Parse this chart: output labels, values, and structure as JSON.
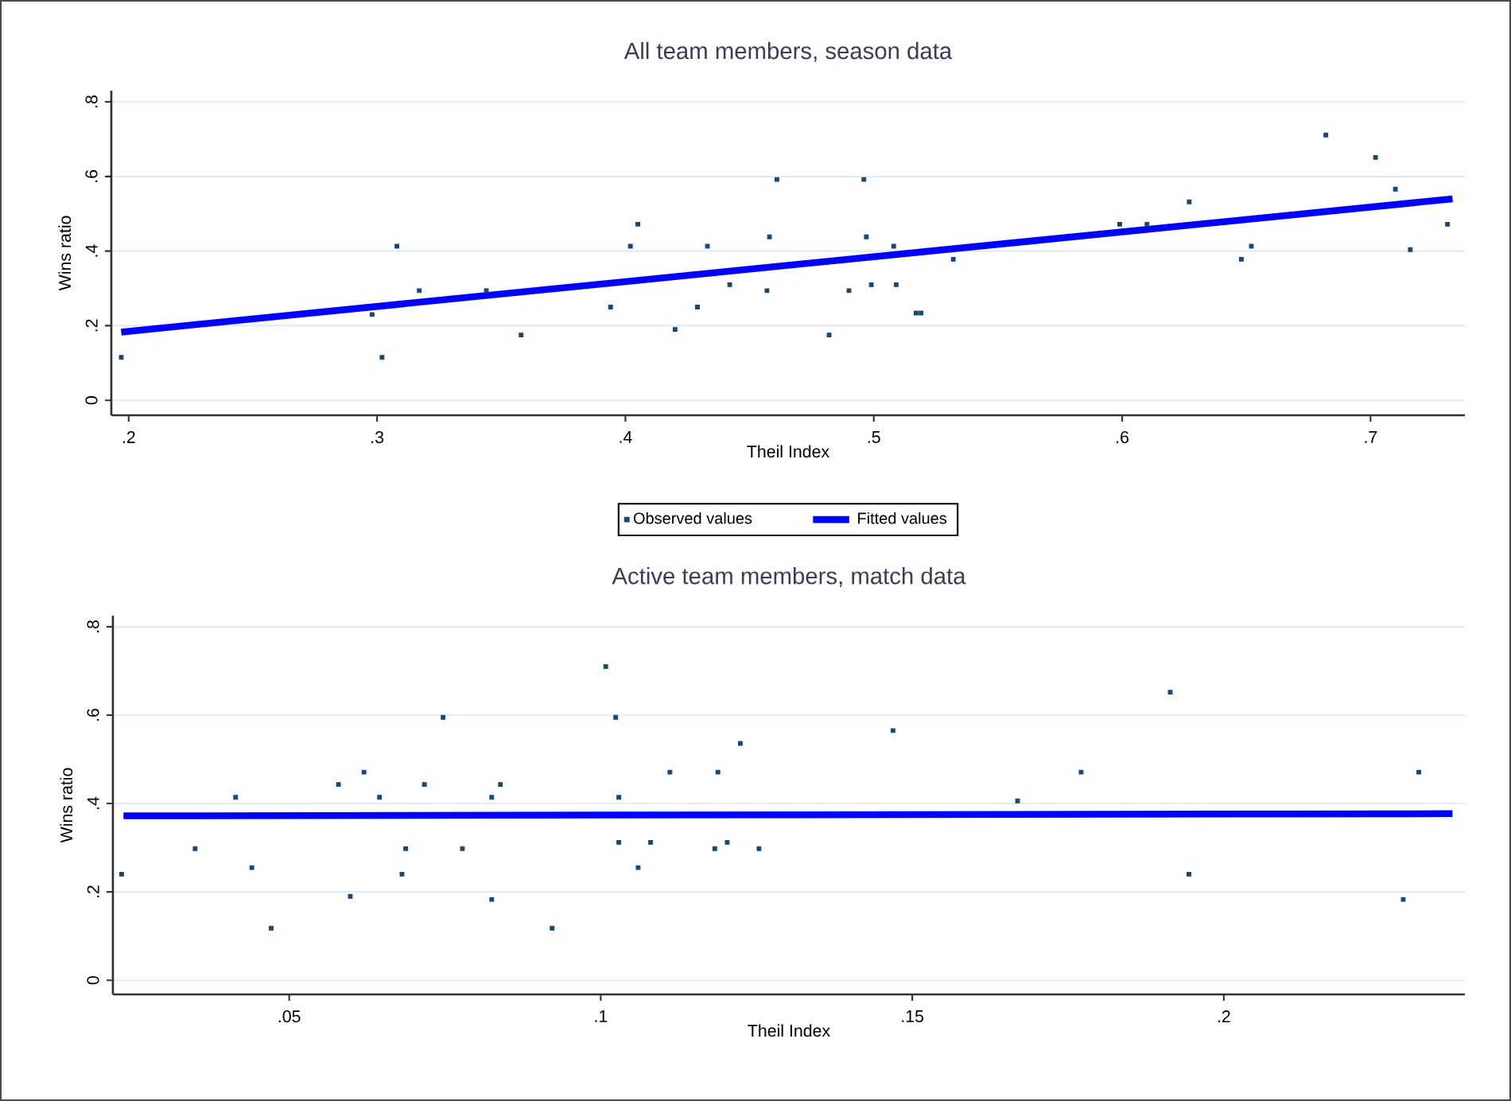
{
  "chart_data": [
    {
      "type": "scatter",
      "title": "All team members, season data",
      "xlabel": "Theil Index",
      "ylabel": "Wins ratio",
      "xlim": [
        0.193,
        0.738
      ],
      "ylim": [
        -0.04,
        0.83
      ],
      "xticks": [
        {
          "value": 0.2,
          "label": ".2"
        },
        {
          "value": 0.3,
          "label": ".3"
        },
        {
          "value": 0.4,
          "label": ".4"
        },
        {
          "value": 0.5,
          "label": ".5"
        },
        {
          "value": 0.6,
          "label": ".6"
        },
        {
          "value": 0.7,
          "label": ".7"
        }
      ],
      "yticks": [
        0,
        {
          "value": 0.2,
          "label": ".2"
        },
        {
          "value": 0.4,
          "label": ".4"
        },
        {
          "value": 0.6,
          "label": ".6"
        },
        {
          "value": 0.8,
          "label": ".8"
        }
      ],
      "grid": "y",
      "legend": "bottom",
      "series": [
        {
          "name": "Observed values",
          "type": "scatter",
          "marker": "square",
          "color": "#1a476f",
          "x": [
            0.197,
            0.298,
            0.302,
            0.308,
            0.317,
            0.344,
            0.358,
            0.394,
            0.402,
            0.405,
            0.42,
            0.429,
            0.433,
            0.442,
            0.457,
            0.458,
            0.461,
            0.482,
            0.49,
            0.496,
            0.497,
            0.499,
            0.508,
            0.509,
            0.517,
            0.519,
            0.532,
            0.599,
            0.61,
            0.627,
            0.648,
            0.652,
            0.682,
            0.702,
            0.71,
            0.716,
            0.731
          ],
          "values": [
            0.115,
            0.23,
            0.115,
            0.413,
            0.294,
            0.294,
            0.175,
            0.25,
            0.413,
            0.472,
            0.19,
            0.25,
            0.413,
            0.31,
            0.294,
            0.438,
            0.592,
            0.175,
            0.294,
            0.592,
            0.438,
            0.31,
            0.413,
            0.31,
            0.234,
            0.234,
            0.378,
            0.472,
            0.472,
            0.532,
            0.378,
            0.413,
            0.711,
            0.651,
            0.566,
            0.404,
            0.472
          ]
        },
        {
          "name": "Fitted values",
          "type": "line",
          "line_style": "solid",
          "color": "#0000ff",
          "x": [
            0.197,
            0.733
          ],
          "values": [
            0.183,
            0.54
          ]
        }
      ]
    },
    {
      "type": "scatter",
      "title": "Active team members, match data",
      "xlabel": "Theil Index",
      "ylabel": "Wins ratio",
      "xlim": [
        0.0217,
        0.2387
      ],
      "ylim": [
        -0.032,
        0.825
      ],
      "xticks": [
        {
          "value": 0.05,
          "label": ".05"
        },
        {
          "value": 0.1,
          "label": ".1"
        },
        {
          "value": 0.15,
          "label": ".15"
        },
        {
          "value": 0.2,
          "label": ".2"
        }
      ],
      "yticks": [
        0,
        {
          "value": 0.2,
          "label": ".2"
        },
        {
          "value": 0.4,
          "label": ".4"
        },
        {
          "value": 0.6,
          "label": ".6"
        },
        {
          "value": 0.8,
          "label": ".8"
        }
      ],
      "grid": "y",
      "series": [
        {
          "type": "scatter",
          "marker": "square",
          "color": "#1a476f",
          "x": [
            0.0231,
            0.0349,
            0.0414,
            0.044,
            0.0471,
            0.0579,
            0.0598,
            0.062,
            0.0645,
            0.0681,
            0.0687,
            0.0717,
            0.0747,
            0.0778,
            0.0825,
            0.0825,
            0.0839,
            0.0922,
            0.1008,
            0.1024,
            0.1029,
            0.1029,
            0.106,
            0.108,
            0.1111,
            0.1183,
            0.1188,
            0.1203,
            0.1224,
            0.1254,
            0.1469,
            0.1669,
            0.1771,
            0.1914,
            0.1944,
            0.2288,
            0.2313
          ],
          "values": [
            0.24,
            0.298,
            0.414,
            0.255,
            0.118,
            0.443,
            0.19,
            0.471,
            0.414,
            0.24,
            0.298,
            0.443,
            0.595,
            0.298,
            0.414,
            0.183,
            0.443,
            0.118,
            0.71,
            0.595,
            0.414,
            0.312,
            0.255,
            0.312,
            0.471,
            0.298,
            0.471,
            0.312,
            0.536,
            0.298,
            0.565,
            0.406,
            0.471,
            0.652,
            0.24,
            0.183,
            0.471
          ]
        },
        {
          "type": "line",
          "line_style": "solid",
          "color": "#0000ff",
          "x": [
            0.0234,
            0.2367
          ],
          "values": [
            0.372,
            0.377
          ]
        }
      ]
    }
  ]
}
